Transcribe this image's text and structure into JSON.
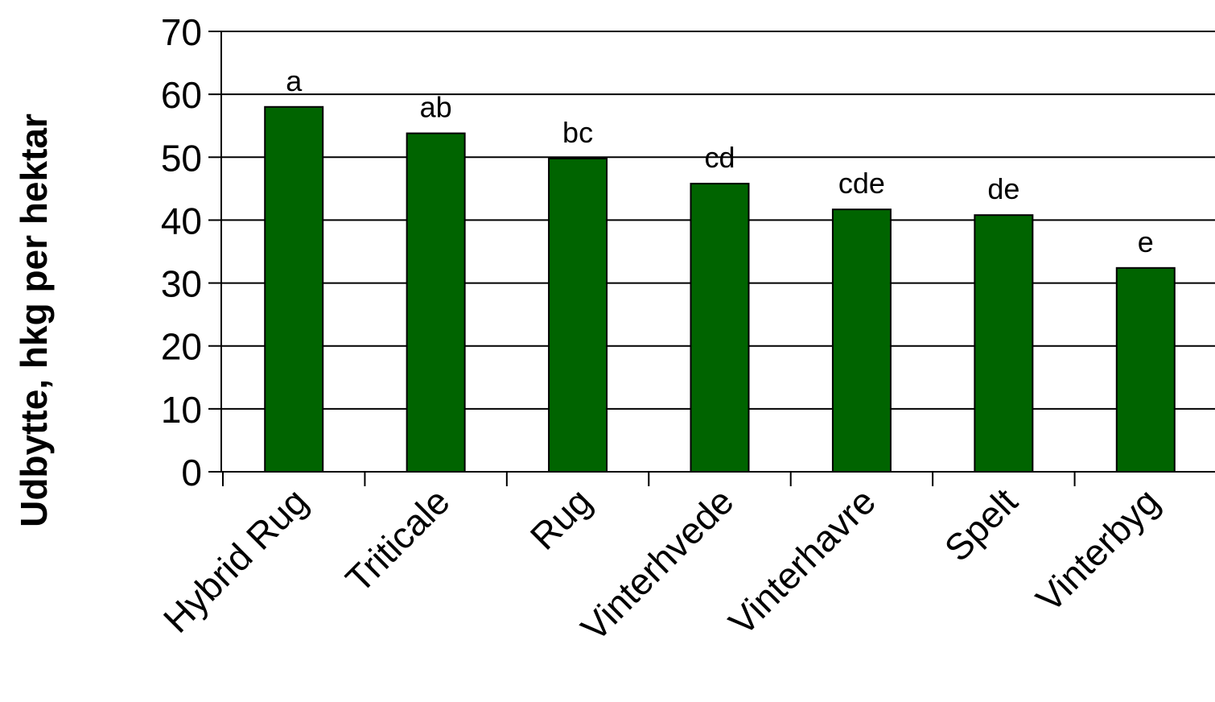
{
  "chart_data": {
    "type": "bar",
    "title": "",
    "xlabel": "",
    "ylabel": "Udbytte, hkg per hektar",
    "ylim": [
      0,
      70
    ],
    "yticks": [
      0,
      10,
      20,
      30,
      40,
      50,
      60,
      70
    ],
    "grid": true,
    "legend": "none",
    "categories": [
      "Hybrid Rug",
      "Triticale",
      "Rug",
      "Vinterhvede",
      "Vinterhavre",
      "Spelt",
      "Vinterbyg"
    ],
    "values": [
      58,
      53.8,
      49.8,
      45.8,
      41.7,
      40.8,
      32.4
    ],
    "bar_labels": [
      "a",
      "ab",
      "bc",
      "cd",
      "cde",
      "de",
      "e"
    ],
    "colors": {
      "bar": "#006400",
      "bar_outline": "#000000",
      "grid": "#000000",
      "text": "#000000"
    }
  }
}
